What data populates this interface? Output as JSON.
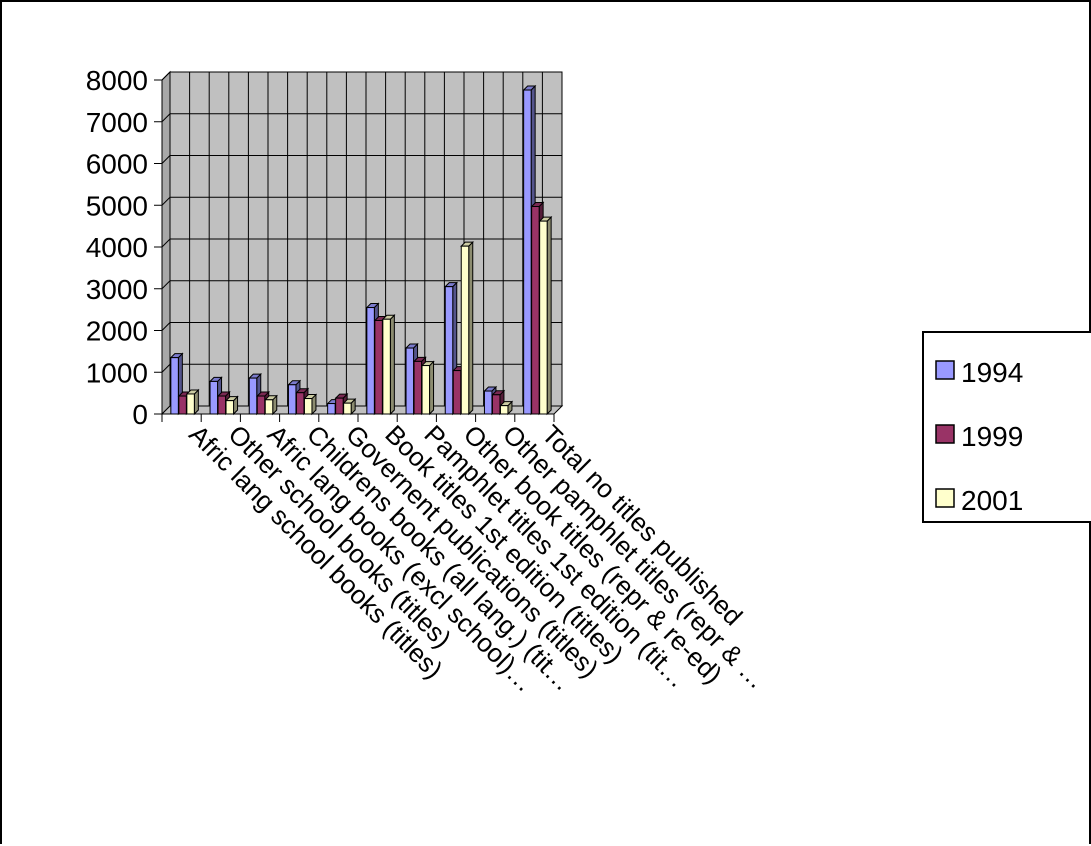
{
  "chart_data": {
    "type": "bar",
    "title": "",
    "xlabel": "",
    "ylabel": "",
    "ylim": [
      0,
      8000
    ],
    "yticks": [
      "0",
      "1000",
      "2000",
      "3000",
      "4000",
      "5000",
      "6000",
      "7000",
      "8000"
    ],
    "grid": true,
    "legend_position": "right",
    "categories": [
      "Afric lang school books (titles)",
      "Other school books (titles)",
      "Afric lang books (excl school)…",
      "Childrens books (all lang.) (tit…",
      "Governent publications (titles)",
      "Book titles 1st edition (titles)",
      "Pamphlet titles 1st edition (tit…",
      "Other book titles (repr & re-ed)",
      "Other pamphlet titles (repr & …",
      "Total no titles published"
    ],
    "series": [
      {
        "name": "1994",
        "color": "#9999ff",
        "values": [
          1350,
          780,
          860,
          700,
          250,
          2550,
          1580,
          3050,
          550,
          7760
        ]
      },
      {
        "name": "1999",
        "color": "#993366",
        "values": [
          430,
          430,
          430,
          510,
          380,
          2240,
          1260,
          1040,
          460,
          4970
        ]
      },
      {
        "name": "2001",
        "color": "#ffffcc",
        "values": [
          480,
          320,
          340,
          370,
          260,
          2270,
          1160,
          4020,
          200,
          4620
        ]
      }
    ]
  }
}
